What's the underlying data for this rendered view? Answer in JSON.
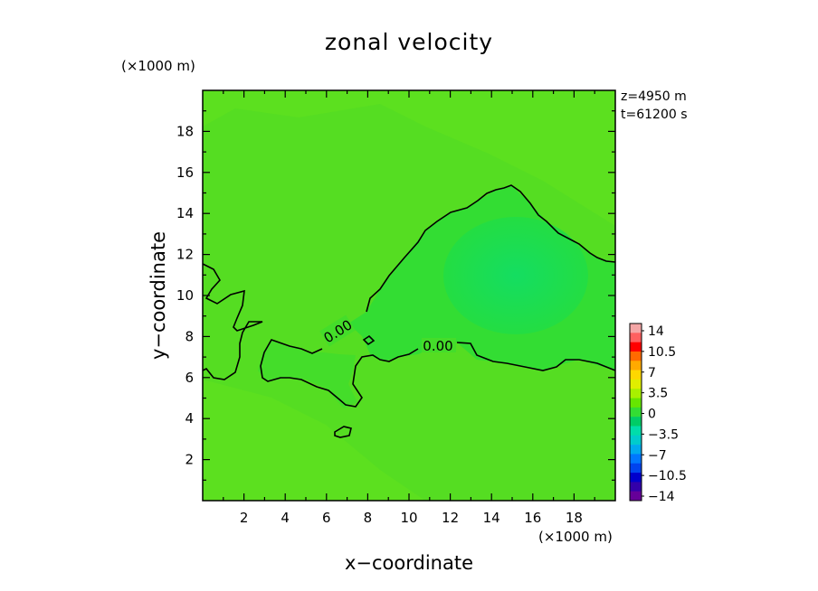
{
  "chart_data": {
    "type": "heatmap",
    "title": "zonal velocity",
    "xlabel": "x−coordinate",
    "ylabel": "y−coordinate",
    "x_unit": "(×1000 m)",
    "y_unit": "(×1000 m)",
    "xlim": [
      0,
      20
    ],
    "ylim": [
      0,
      20
    ],
    "x_ticks": [
      "2",
      "4",
      "6",
      "8",
      "10",
      "12",
      "14",
      "16",
      "18"
    ],
    "y_ticks": [
      "2",
      "4",
      "6",
      "8",
      "10",
      "12",
      "14",
      "16",
      "18"
    ],
    "annotations": [
      "z=4950 m",
      "t=61200 s"
    ],
    "contour_label": "0.00",
    "colorbar": {
      "labels": [
        "14",
        "10.5",
        "7",
        "3.5",
        "0",
        "−3.5",
        "−7",
        "−10.5",
        "−14"
      ],
      "colors": [
        "#f4a6a6",
        "#ff6060",
        "#ff0000",
        "#ff6a00",
        "#ffaa00",
        "#ffd700",
        "#e0ee00",
        "#a8f000",
        "#66e600",
        "#33dd33",
        "#00cc66",
        "#00ddaa",
        "#00cccc",
        "#00aaee",
        "#0077ff",
        "#0044ee",
        "#0000cc",
        "#3300aa",
        "#660099"
      ]
    },
    "field_colors": {
      "base": "#55dd22",
      "positive": "#66e619",
      "negative": "#22dd44",
      "negative_core": "#11dd66"
    }
  }
}
